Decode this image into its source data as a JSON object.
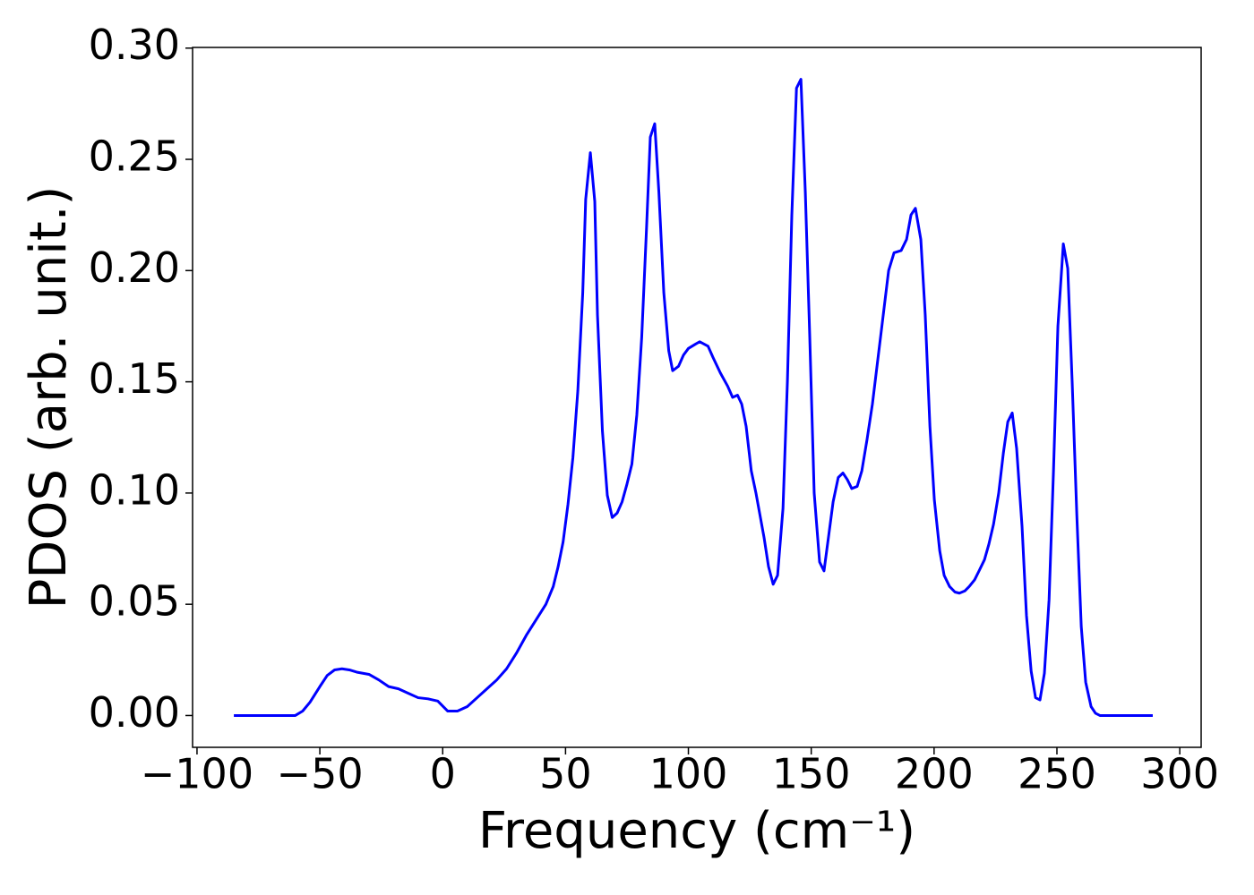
{
  "chart_data": {
    "type": "line",
    "x_label": "Frequency (cm⁻¹)",
    "y_label": "PDOS (arb. unit.)",
    "xlim": [
      -101.8,
      308.7
    ],
    "ylim": [
      -0.0143,
      0.3003
    ],
    "xticks": [
      {
        "value": -100,
        "label": "−100"
      },
      {
        "value": -50,
        "label": "−50"
      },
      0,
      50,
      100,
      150,
      200,
      250,
      300
    ],
    "yticks": [
      {
        "value": 0,
        "label": "0.00"
      },
      0.05,
      {
        "value": 0.1,
        "label": "0.10"
      },
      0.15,
      {
        "value": 0.2,
        "label": "0.20"
      },
      0.25,
      {
        "value": 0.3,
        "label": "0.30"
      }
    ],
    "series": [
      {
        "color": "#0000ff",
        "x": [
          -85,
          -60,
          -57,
          -54,
          -50,
          -47,
          -44,
          -41,
          -38,
          -35,
          -30,
          -26,
          -22,
          -18,
          -14,
          -10,
          -6,
          -2,
          2,
          6,
          10,
          14,
          18,
          22,
          26,
          30,
          34,
          38,
          42,
          45,
          47,
          49,
          51,
          53,
          55,
          57,
          58.2,
          60.1,
          61.9,
          63,
          65,
          67,
          69,
          71,
          73,
          75,
          77,
          79,
          81,
          83,
          84.5,
          86.3,
          88,
          90,
          92,
          93.6,
          96,
          98,
          100,
          103,
          104.6,
          108,
          110,
          113,
          116,
          118,
          120,
          121.7,
          123.5,
          125.6,
          127.5,
          130.8,
          132.6,
          134.5,
          136.3,
          138.5,
          140.3,
          142.1,
          144,
          145.8,
          147.6,
          149.4,
          151.2,
          153.4,
          155.2,
          157,
          158.9,
          161,
          162.9,
          164.7,
          166.5,
          168.7,
          170.6,
          172.7,
          174.9,
          177.1,
          179.3,
          181.5,
          183.7,
          186.6,
          188.8,
          190.6,
          192.4,
          194.6,
          196.4,
          198.3,
          200.1,
          202.3,
          204.1,
          206.3,
          208.5,
          210.3,
          212.5,
          214.3,
          216.5,
          218.3,
          220.5,
          222.3,
          224.2,
          226.3,
          228.2,
          230,
          231.8,
          233.6,
          235.8,
          237.6,
          239.5,
          241.3,
          243.1,
          244.9,
          246.8,
          248.6,
          250.4,
          252.6,
          254.4,
          256.2,
          258.1,
          259.9,
          261.7,
          263.9,
          265.7,
          267.5,
          289
        ],
        "values": [
          0,
          0,
          0.002,
          0.006,
          0.013,
          0.018,
          0.0205,
          0.021,
          0.0205,
          0.0195,
          0.0185,
          0.016,
          0.013,
          0.012,
          0.01,
          0.008,
          0.0075,
          0.0065,
          0.002,
          0.002,
          0.004,
          0.008,
          0.012,
          0.016,
          0.021,
          0.028,
          0.036,
          0.043,
          0.05,
          0.058,
          0.067,
          0.078,
          0.095,
          0.116,
          0.146,
          0.19,
          0.232,
          0.253,
          0.231,
          0.18,
          0.128,
          0.099,
          0.089,
          0.091,
          0.096,
          0.104,
          0.113,
          0.135,
          0.17,
          0.22,
          0.26,
          0.266,
          0.235,
          0.19,
          0.164,
          0.155,
          0.157,
          0.162,
          0.165,
          0.167,
          0.168,
          0.166,
          0.161,
          0.154,
          0.148,
          0.143,
          0.144,
          0.14,
          0.13,
          0.11,
          0.1,
          0.08,
          0.067,
          0.059,
          0.063,
          0.093,
          0.15,
          0.225,
          0.282,
          0.286,
          0.235,
          0.17,
          0.1,
          0.069,
          0.065,
          0.08,
          0.096,
          0.107,
          0.109,
          0.106,
          0.102,
          0.103,
          0.11,
          0.124,
          0.14,
          0.16,
          0.18,
          0.2,
          0.208,
          0.209,
          0.214,
          0.225,
          0.228,
          0.214,
          0.18,
          0.13,
          0.097,
          0.074,
          0.063,
          0.058,
          0.0555,
          0.055,
          0.056,
          0.058,
          0.061,
          0.065,
          0.07,
          0.077,
          0.086,
          0.1,
          0.118,
          0.132,
          0.136,
          0.12,
          0.085,
          0.045,
          0.02,
          0.008,
          0.007,
          0.019,
          0.052,
          0.11,
          0.175,
          0.212,
          0.201,
          0.15,
          0.09,
          0.04,
          0.015,
          0.004,
          0.001,
          0,
          0
        ]
      }
    ]
  }
}
